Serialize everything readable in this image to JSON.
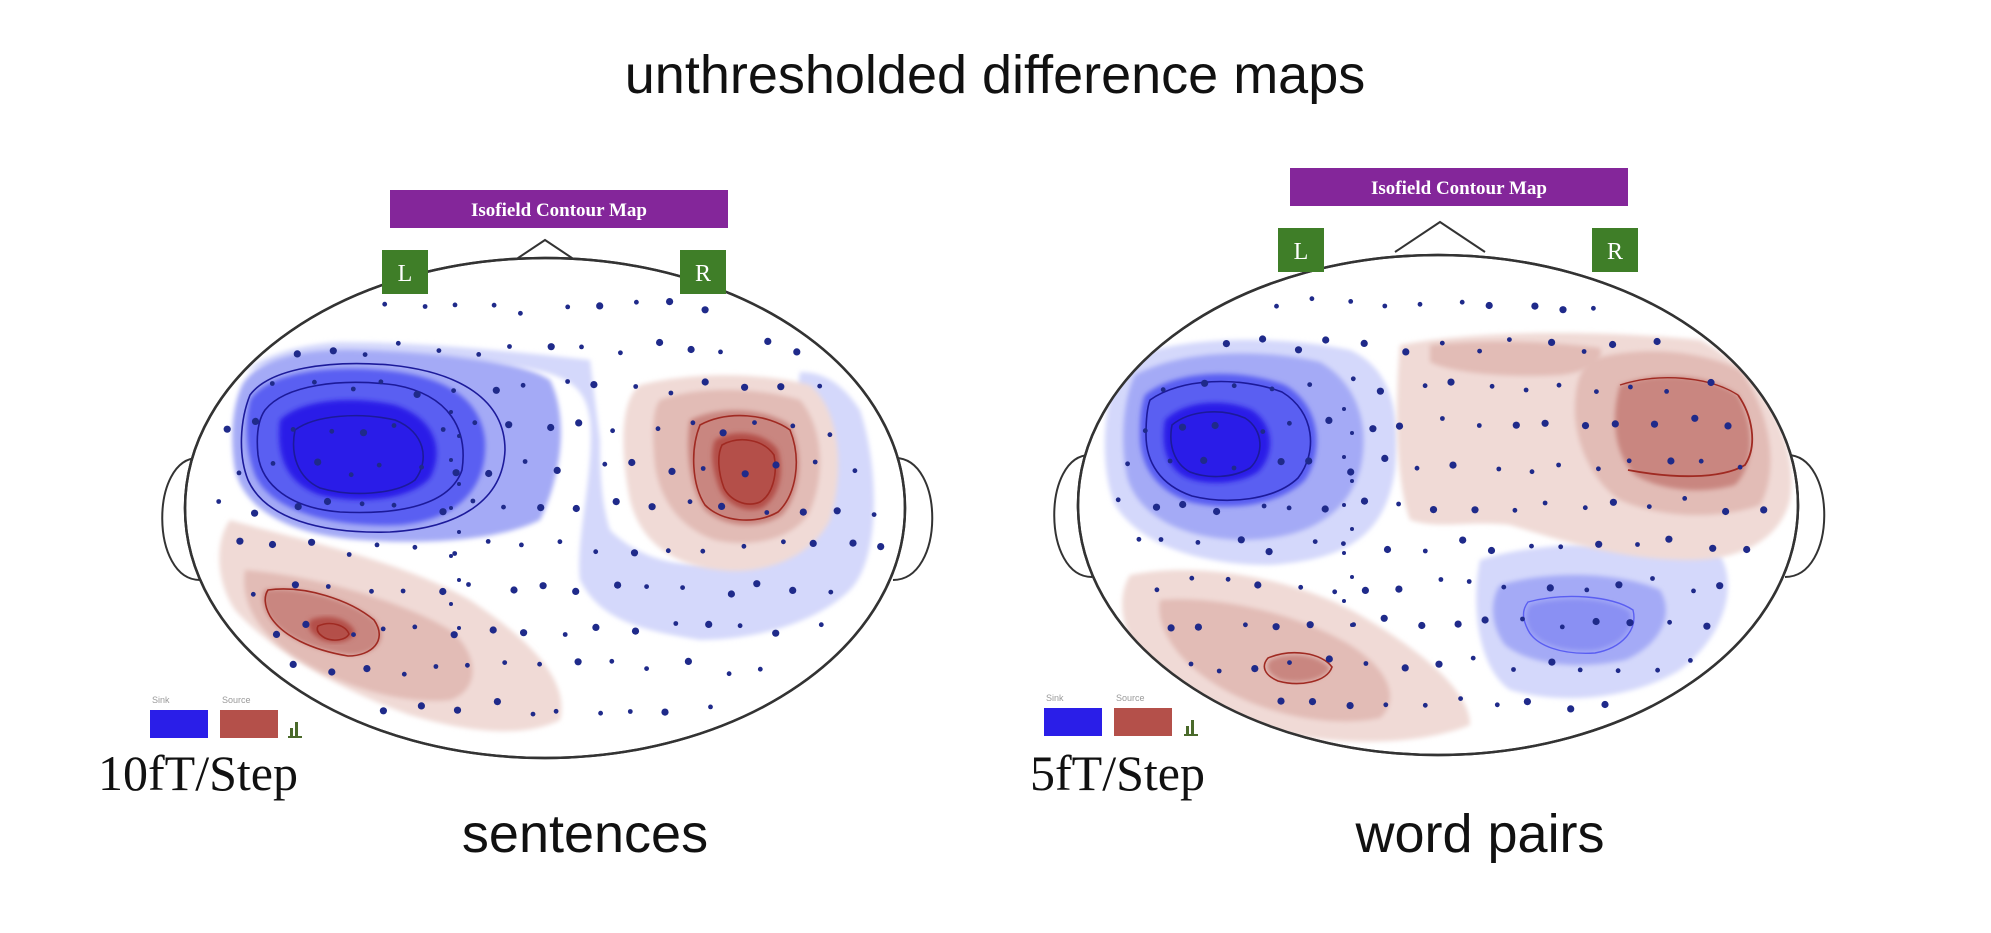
{
  "title": "unthresholded difference maps",
  "colors": {
    "blue_strong": "#2a1ee8",
    "blue_mid": "#5a5ef2",
    "blue_light": "#a4aaf6",
    "blue_faint": "#d4d8fb",
    "red_strong": "#b4504a",
    "red_mid": "#c98680",
    "red_light": "#e2bcb6",
    "red_faint": "#f0dad6",
    "banner": "#84269a",
    "side_label": "#3f7e28",
    "sensor_dot": "#1f2a8a",
    "contour_blue": "#1c1a9a",
    "contour_red": "#a02a22"
  },
  "panels": [
    {
      "banner": "Isofield Contour Map",
      "left_label": "L",
      "right_label": "R",
      "legend_sink": "Sink",
      "legend_source": "Source",
      "legend_icon": "bar-chart-icon",
      "scale": "10fT/Step",
      "caption": "sentences"
    },
    {
      "banner": "Isofield Contour Map",
      "left_label": "L",
      "right_label": "R",
      "legend_sink": "Sink",
      "legend_source": "Source",
      "legend_icon": "bar-chart-icon",
      "scale": "5fT/Step",
      "caption": "word pairs"
    }
  ]
}
